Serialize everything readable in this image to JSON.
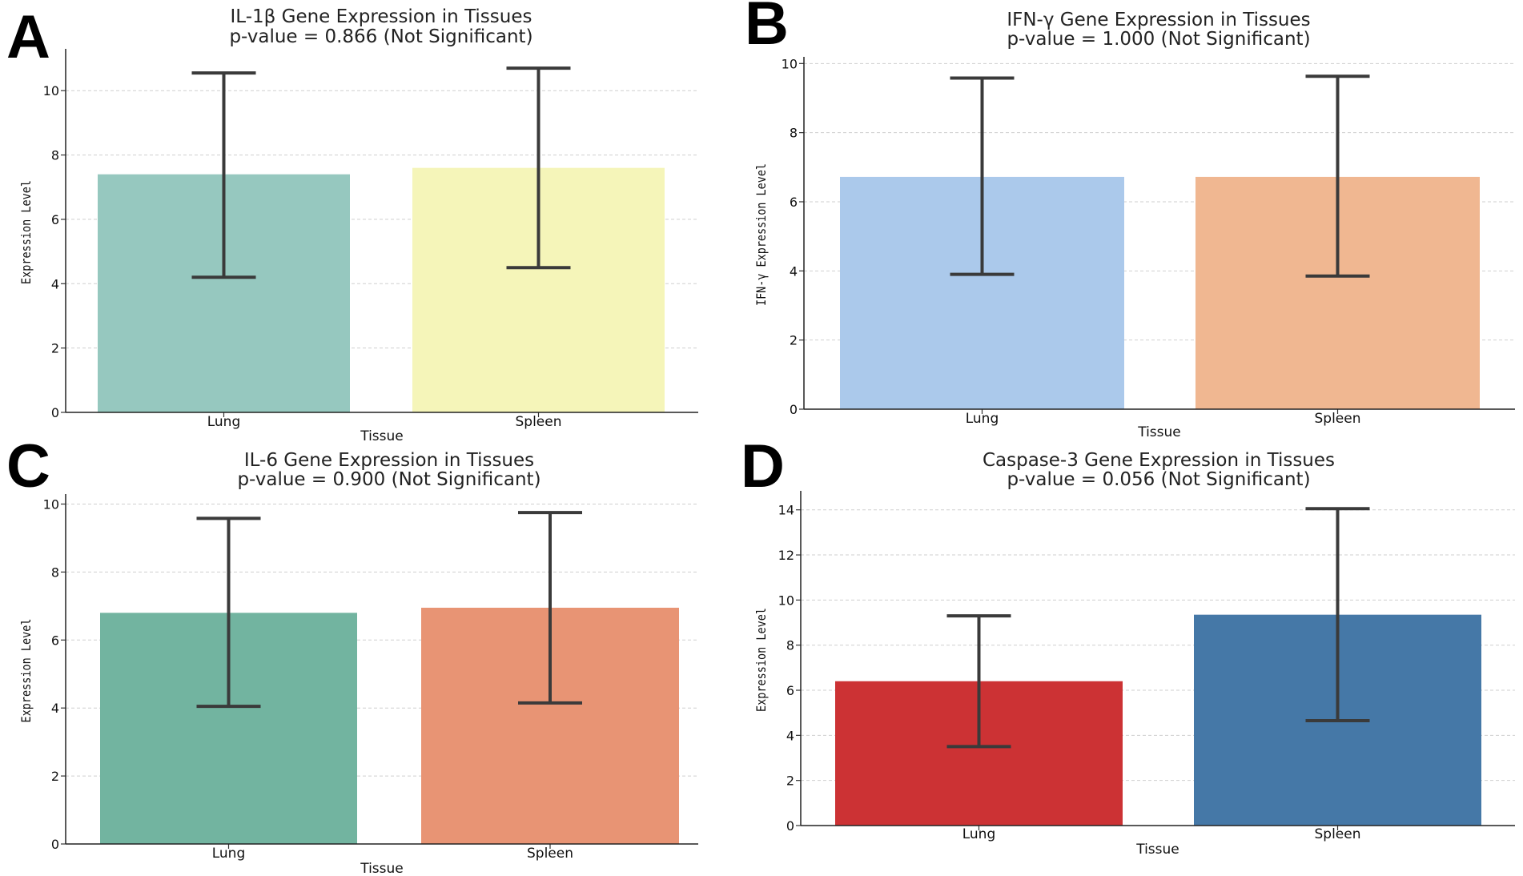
{
  "chart_data": [
    {
      "panel": "A",
      "type": "bar",
      "title": "IL-1β Gene Expression in Tissues",
      "subtitle": "p-value = 0.866 (Not Significant)",
      "xlabel": "Tissue",
      "ylabel": "Expression Level",
      "categories": [
        "Lung",
        "Spleen"
      ],
      "values": [
        7.4,
        7.6
      ],
      "error_low": [
        4.2,
        4.5
      ],
      "error_high": [
        10.55,
        10.7
      ],
      "colors": [
        "#96c8bf",
        "#f5f5b9"
      ],
      "ylim": [
        0,
        11.2
      ],
      "yticks": [
        0,
        2,
        4,
        6,
        8,
        10
      ],
      "grid": true
    },
    {
      "panel": "B",
      "type": "bar",
      "title": "IFN-γ Gene Expression in Tissues",
      "subtitle": "p-value = 1.000 (Not Significant)",
      "xlabel": "Tissue",
      "ylabel": "IFN-γ Expression Level",
      "categories": [
        "Lung",
        "Spleen"
      ],
      "values": [
        6.72,
        6.72
      ],
      "error_low": [
        3.9,
        3.85
      ],
      "error_high": [
        9.58,
        9.63
      ],
      "colors": [
        "#abc9eb",
        "#f0b791"
      ],
      "ylim": [
        0,
        10.1
      ],
      "yticks": [
        0,
        2,
        4,
        6,
        8,
        10
      ],
      "grid": true
    },
    {
      "panel": "C",
      "type": "bar",
      "title": "IL-6 Gene Expression in Tissues",
      "subtitle": "p-value = 0.900 (Not Significant)",
      "xlabel": "Tissue",
      "ylabel": "Expression Level",
      "categories": [
        "Lung",
        "Spleen"
      ],
      "values": [
        6.8,
        6.95
      ],
      "error_low": [
        4.05,
        4.15
      ],
      "error_high": [
        9.58,
        9.75
      ],
      "colors": [
        "#72b4a0",
        "#e89474"
      ],
      "ylim": [
        0,
        10.2
      ],
      "yticks": [
        0,
        2,
        4,
        6,
        8,
        10
      ],
      "grid": true
    },
    {
      "panel": "D",
      "type": "bar",
      "title": "Caspase-3 Gene Expression in Tissues",
      "subtitle": "p-value = 0.056 (Not Significant)",
      "xlabel": "Tissue",
      "ylabel": "Expression Level",
      "categories": [
        "Lung",
        "Spleen"
      ],
      "values": [
        6.4,
        9.35
      ],
      "error_low": [
        3.5,
        4.65
      ],
      "error_high": [
        9.3,
        14.05
      ],
      "colors": [
        "#cc3234",
        "#4578a7"
      ],
      "ylim": [
        0,
        14.7
      ],
      "yticks": [
        0,
        2,
        4,
        6,
        8,
        10,
        12,
        14
      ],
      "grid": true
    }
  ]
}
